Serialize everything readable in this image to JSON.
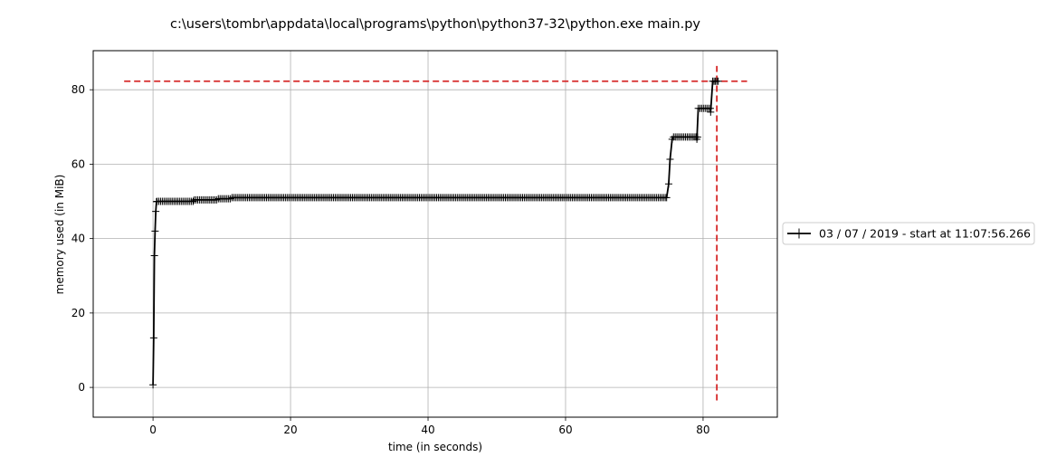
{
  "chart_data": {
    "type": "line",
    "title": "c:\\users\\tombr\\appdata\\local\\programs\\python\\python37-32\\python.exe main.py",
    "xlabel": "time (in seconds)",
    "ylabel": "memory used (in MiB)",
    "xlim": [
      -8.7,
      90.8
    ],
    "ylim": [
      -8,
      90.5
    ],
    "xticks": [
      0,
      20,
      40,
      60,
      80
    ],
    "yticks": [
      0,
      20,
      40,
      60,
      80
    ],
    "grid": true,
    "legend_position": "outside-right",
    "series": [
      {
        "name": "03 / 07 / 2019 - start at 11:07:56.266",
        "color": "#000000",
        "marker": "+",
        "segments": [
          {
            "x": [
              0.0,
              0.1,
              0.2,
              0.3,
              0.4,
              0.5
            ],
            "y": [
              0.7,
              13.3,
              35.4,
              42.0,
              47.3,
              49.9
            ]
          },
          {
            "x_start": 0.6,
            "x_end": 5.9,
            "step": 0.25,
            "y": 50.0
          },
          {
            "x_start": 6.0,
            "x_end": 9.4,
            "step": 0.25,
            "y": 50.4
          },
          {
            "x_start": 9.5,
            "x_end": 11.4,
            "step": 0.25,
            "y": 50.7
          },
          {
            "x_start": 11.5,
            "x_end": 74.5,
            "step": 0.25,
            "y": 51.0
          },
          {
            "x": [
              74.7,
              75.0,
              75.2,
              75.5
            ],
            "y": [
              51.0,
              54.7,
              61.3,
              66.7
            ]
          },
          {
            "x_start": 75.7,
            "x_end": 79.2,
            "step": 0.25,
            "y": 67.3
          },
          {
            "x": [
              79.1
            ],
            "y": [
              66.7
            ]
          },
          {
            "x_start": 79.3,
            "x_end": 81.2,
            "step": 0.25,
            "y": 75.0
          },
          {
            "x": [
              81.1
            ],
            "y": [
              74.0
            ]
          },
          {
            "x_start": 81.4,
            "x_end": 82.2,
            "step": 0.2,
            "y": 82.3
          }
        ]
      }
    ],
    "reference_lines": [
      {
        "orientation": "horizontal",
        "y": 82.3,
        "x_from": -4.2,
        "x_to": 86.4,
        "color": "#d62728",
        "style": "dashed"
      },
      {
        "orientation": "vertical",
        "x": 82.0,
        "y_from": -3.5,
        "y_to": 86.4,
        "color": "#d62728",
        "style": "dashed"
      }
    ]
  }
}
